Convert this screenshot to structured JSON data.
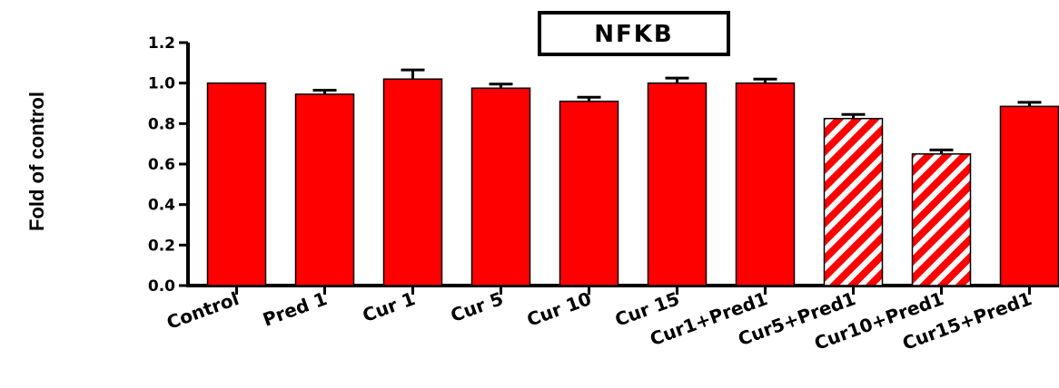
{
  "chart_data": {
    "type": "bar",
    "title": "NFKB",
    "xlabel": "",
    "ylabel": "Fold of control",
    "ylim": [
      0,
      1.2
    ],
    "yticks": [
      0.0,
      0.2,
      0.4,
      0.6,
      0.8,
      1.0,
      1.2
    ],
    "ytick_labels": [
      "0.0",
      "0.2",
      "0.4",
      "0.6",
      "0.8",
      "1.0",
      "1.2"
    ],
    "categories": [
      "Control",
      "Pred 1",
      "Cur 1",
      "Cur 5",
      "Cur 10",
      "Cur 15",
      "Cur1+Pred1",
      "Cur5+Pred1",
      "Cur10+Pred1",
      "Cur15+Pred1"
    ],
    "values": [
      1.0,
      0.945,
      1.02,
      0.975,
      0.91,
      1.0,
      1.0,
      0.825,
      0.65,
      0.885
    ],
    "errors": [
      0.0,
      0.02,
      0.045,
      0.02,
      0.02,
      0.025,
      0.02,
      0.02,
      0.02,
      0.02
    ],
    "patterns": [
      "solid",
      "solid",
      "solid",
      "solid",
      "solid",
      "solid",
      "solid",
      "hatched",
      "hatched",
      "solid"
    ],
    "bar_color": "#ff0000",
    "grid": false,
    "legend": "none"
  }
}
